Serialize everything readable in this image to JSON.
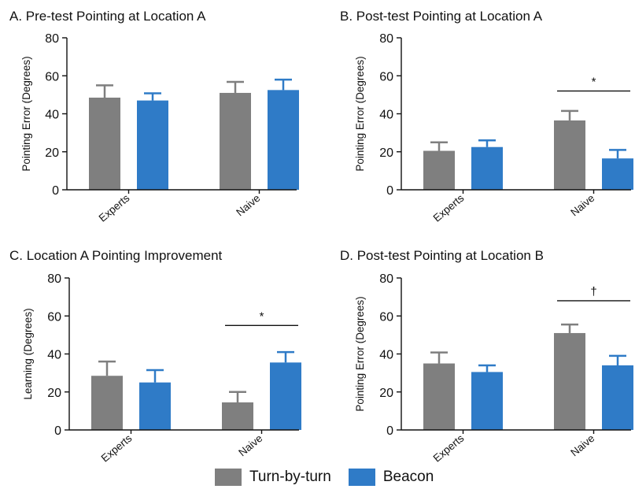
{
  "colors": {
    "turn_by_turn": "#7f7f7f",
    "beacon": "#2f7bc7"
  },
  "legend": [
    {
      "name": "Turn-by-turn",
      "color": "#7f7f7f"
    },
    {
      "name": "Beacon",
      "color": "#2f7bc7"
    }
  ],
  "chart_data": [
    {
      "type": "bar",
      "title": "A.   Pre-test Pointing at Location A",
      "ylabel": "Pointing Error (Degrees)",
      "ylim": [
        0,
        80
      ],
      "yticks": [
        0,
        20,
        40,
        60,
        80
      ],
      "categories": [
        "Experts",
        "Naive"
      ],
      "series": [
        {
          "name": "Turn-by-turn",
          "values": [
            48.5,
            51
          ],
          "errors": [
            6.5,
            5.8
          ]
        },
        {
          "name": "Beacon",
          "values": [
            47,
            52.5
          ],
          "errors": [
            3.8,
            5.5
          ]
        }
      ],
      "annotations": []
    },
    {
      "type": "bar",
      "title": "B.   Post-test Pointing at Location A",
      "ylabel": "Pointing Error (Degrees)",
      "ylim": [
        0,
        80
      ],
      "yticks": [
        0,
        20,
        40,
        60,
        80
      ],
      "categories": [
        "Experts",
        "Naive"
      ],
      "series": [
        {
          "name": "Turn-by-turn",
          "values": [
            20.5,
            36.5
          ],
          "errors": [
            4.5,
            5
          ]
        },
        {
          "name": "Beacon",
          "values": [
            22.5,
            16.5
          ],
          "errors": [
            3.5,
            4.5
          ]
        }
      ],
      "annotations": [
        {
          "text": "*",
          "category": "Naive",
          "y": 52
        }
      ]
    },
    {
      "type": "bar",
      "title": "C.   Location A Pointing Improvement",
      "ylabel": "Learning (Degrees)",
      "ylim": [
        0,
        80
      ],
      "yticks": [
        0,
        20,
        40,
        60,
        80
      ],
      "categories": [
        "Experts",
        "Naive"
      ],
      "series": [
        {
          "name": "Turn-by-turn",
          "values": [
            28.5,
            14.5
          ],
          "errors": [
            7.5,
            5.5
          ]
        },
        {
          "name": "Beacon",
          "values": [
            25,
            35.5
          ],
          "errors": [
            6.5,
            5.5
          ]
        }
      ],
      "annotations": [
        {
          "text": "*",
          "category": "Naive",
          "y": 55
        }
      ]
    },
    {
      "type": "bar",
      "title": "D.   Post-test Pointing at Location B",
      "ylabel": "Pointing Error (Degrees)",
      "ylim": [
        0,
        80
      ],
      "yticks": [
        0,
        20,
        40,
        60,
        80
      ],
      "categories": [
        "Experts",
        "Naive"
      ],
      "series": [
        {
          "name": "Turn-by-turn",
          "values": [
            35,
            51
          ],
          "errors": [
            5.8,
            4.5
          ]
        },
        {
          "name": "Beacon",
          "values": [
            30.5,
            34
          ],
          "errors": [
            3.5,
            5
          ]
        }
      ],
      "annotations": [
        {
          "text": "†",
          "category": "Naive",
          "y": 68
        }
      ]
    }
  ]
}
